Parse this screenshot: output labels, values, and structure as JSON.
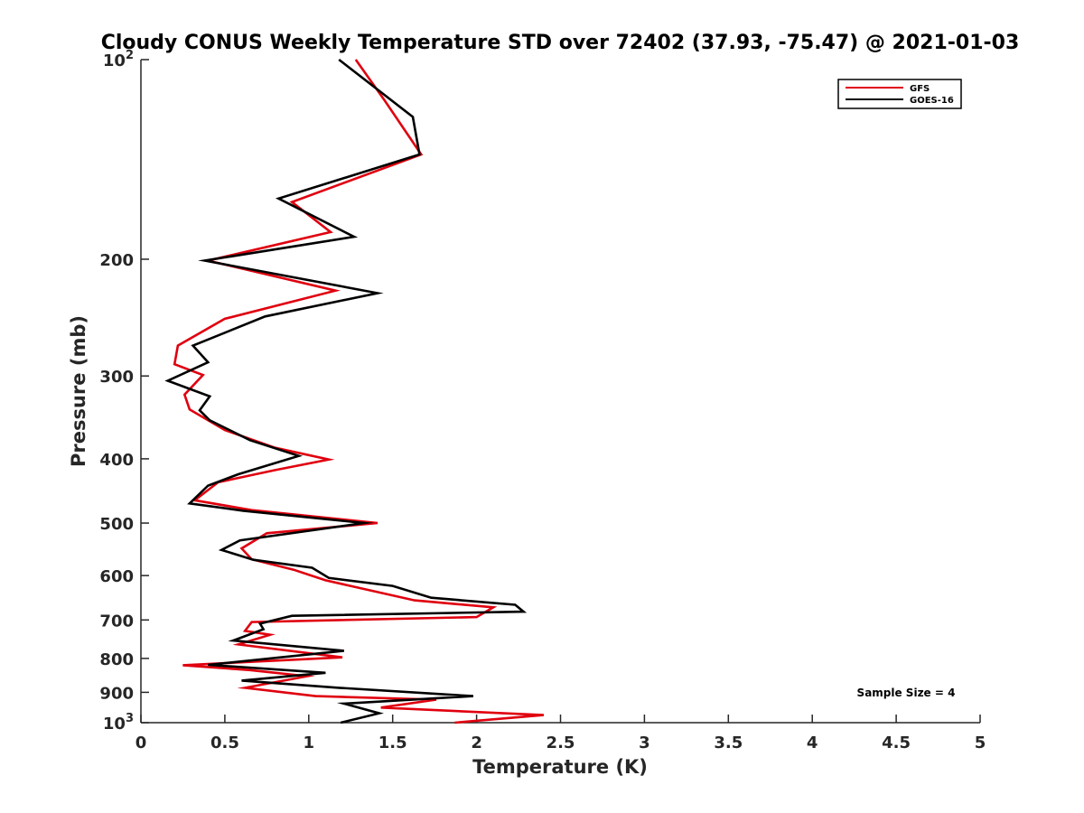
{
  "chart_data": {
    "type": "line",
    "title": "Cloudy CONUS Weekly Temperature STD over 72402 (37.93, -75.47) @ 2021-01-03",
    "xlabel": "Temperature (K)",
    "ylabel": "Pressure (mb)",
    "xlim": [
      0,
      5
    ],
    "ylim": [
      100,
      1000
    ],
    "yscale": "log",
    "y_reversed": true,
    "x_ticks": [
      "0",
      "0.5",
      "1",
      "1.5",
      "2",
      "2.5",
      "3",
      "3.5",
      "4",
      "4.5",
      "5"
    ],
    "y_ticks": [
      {
        "value": 100,
        "base": "10",
        "exp": "2"
      },
      {
        "value": 200,
        "label": "200"
      },
      {
        "value": 300,
        "label": "300"
      },
      {
        "value": 400,
        "label": "400"
      },
      {
        "value": 500,
        "label": "500"
      },
      {
        "value": 600,
        "label": "600"
      },
      {
        "value": 700,
        "label": "700"
      },
      {
        "value": 800,
        "label": "800"
      },
      {
        "value": 900,
        "label": "900"
      },
      {
        "value": 1000,
        "base": "10",
        "exp": "3"
      }
    ],
    "grid": false,
    "legend_position": "top-right",
    "annotation": "Sample Size = 4",
    "series": [
      {
        "name": "GFS",
        "color": "#e0000f",
        "points": [
          [
            1.28,
            100
          ],
          [
            1.45,
            115
          ],
          [
            1.67,
            139
          ],
          [
            0.9,
            164
          ],
          [
            1.13,
            182
          ],
          [
            0.4,
            201
          ],
          [
            1.16,
            223
          ],
          [
            0.5,
            246
          ],
          [
            0.22,
            270
          ],
          [
            0.2,
            288
          ],
          [
            0.37,
            299
          ],
          [
            0.26,
            320
          ],
          [
            0.29,
            337
          ],
          [
            0.5,
            362
          ],
          [
            0.8,
            385
          ],
          [
            1.12,
            401
          ],
          [
            0.8,
            416
          ],
          [
            0.46,
            434
          ],
          [
            0.32,
            462
          ],
          [
            0.66,
            478
          ],
          [
            1.41,
            500
          ],
          [
            0.75,
            518
          ],
          [
            0.6,
            546
          ],
          [
            0.66,
            567
          ],
          [
            0.91,
            588
          ],
          [
            1.1,
            610
          ],
          [
            1.63,
            654
          ],
          [
            2.1,
            670
          ],
          [
            2.0,
            693
          ],
          [
            0.66,
            705
          ],
          [
            0.62,
            727
          ],
          [
            0.77,
            737
          ],
          [
            0.58,
            762
          ],
          [
            1.2,
            797
          ],
          [
            0.25,
            819
          ],
          [
            0.65,
            833
          ],
          [
            0.99,
            851
          ],
          [
            0.62,
            886
          ],
          [
            1.04,
            912
          ],
          [
            1.76,
            923
          ],
          [
            1.43,
            949
          ],
          [
            2.4,
            974
          ],
          [
            1.87,
            1000
          ]
        ]
      },
      {
        "name": "GOES-16",
        "color": "#000000",
        "points": [
          [
            1.18,
            100
          ],
          [
            1.62,
            122
          ],
          [
            1.66,
            139
          ],
          [
            0.82,
            162
          ],
          [
            1.27,
            185
          ],
          [
            0.38,
            201
          ],
          [
            1.41,
            225
          ],
          [
            0.74,
            244
          ],
          [
            0.31,
            270
          ],
          [
            0.4,
            286
          ],
          [
            0.16,
            305
          ],
          [
            0.41,
            322
          ],
          [
            0.35,
            338
          ],
          [
            0.41,
            350
          ],
          [
            0.65,
            375
          ],
          [
            0.94,
            396
          ],
          [
            0.58,
            422
          ],
          [
            0.4,
            439
          ],
          [
            0.29,
            467
          ],
          [
            0.61,
            479
          ],
          [
            1.33,
            500
          ],
          [
            0.59,
            531
          ],
          [
            0.48,
            549
          ],
          [
            0.67,
            568
          ],
          [
            1.02,
            584
          ],
          [
            1.12,
            605
          ],
          [
            1.5,
            622
          ],
          [
            1.73,
            648
          ],
          [
            2.23,
            664
          ],
          [
            2.28,
            680
          ],
          [
            0.9,
            690
          ],
          [
            0.71,
            709
          ],
          [
            0.73,
            723
          ],
          [
            0.55,
            752
          ],
          [
            1.21,
            779
          ],
          [
            0.4,
            818
          ],
          [
            1.1,
            841
          ],
          [
            0.6,
            864
          ],
          [
            1.18,
            886
          ],
          [
            1.98,
            912
          ],
          [
            1.21,
            936
          ],
          [
            1.42,
            968
          ],
          [
            1.19,
            1000
          ]
        ]
      }
    ]
  }
}
